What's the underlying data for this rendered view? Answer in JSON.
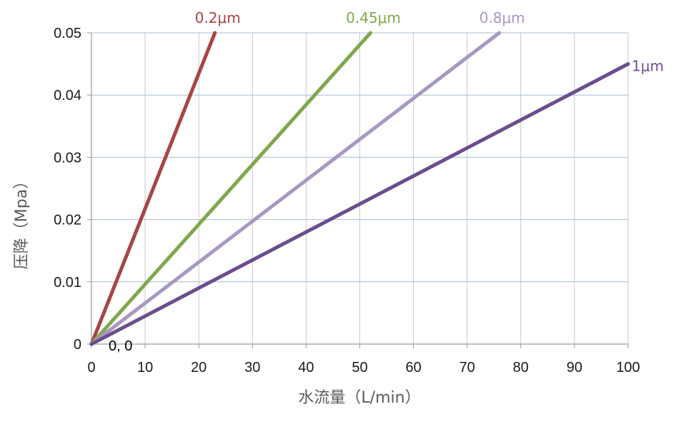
{
  "chart_data": {
    "type": "line",
    "xlabel": "水流量（L/min）",
    "ylabel": "压降（Mpa）",
    "xlim": [
      0,
      100
    ],
    "ylim": [
      0,
      0.05
    ],
    "x_ticks": [
      0,
      10,
      20,
      30,
      40,
      50,
      60,
      70,
      80,
      90,
      100
    ],
    "y_ticks": [
      "0",
      "0.01",
      "0.02",
      "0.03",
      "0.04",
      "0.05"
    ],
    "grid": true,
    "annotation": "0, 0",
    "series": [
      {
        "name": "0.2μm",
        "color": "#A84545",
        "points": [
          [
            0,
            0
          ],
          [
            23,
            0.05
          ]
        ]
      },
      {
        "name": "0.45μm",
        "color": "#80A84B",
        "points": [
          [
            0,
            0
          ],
          [
            52,
            0.05
          ]
        ]
      },
      {
        "name": "0.8μm",
        "color": "#A898C2",
        "points": [
          [
            0,
            0
          ],
          [
            76,
            0.05
          ]
        ]
      },
      {
        "name": "1μm",
        "color": "#6A4E8E",
        "points": [
          [
            0,
            0
          ],
          [
            100,
            0.045
          ]
        ]
      }
    ]
  }
}
